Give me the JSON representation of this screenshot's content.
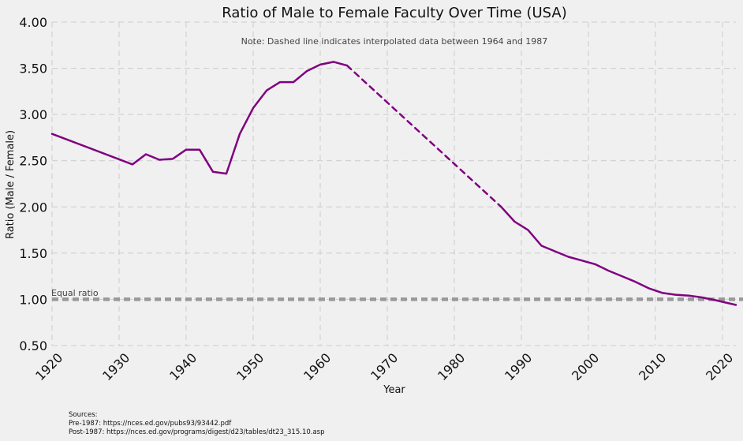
{
  "chart_data": {
    "type": "line",
    "title": "Ratio of Male to Female Faculty Over Time (USA)",
    "note": "Note: Dashed line indicates interpolated data between 1964 and 1987",
    "xlabel": "Year",
    "ylabel": "Ratio (Male / Female)",
    "xlim": [
      1920,
      2022
    ],
    "ylim": [
      0.5,
      4.0
    ],
    "xticks": [
      "1920",
      "1930",
      "1940",
      "1950",
      "1960",
      "1970",
      "1980",
      "1990",
      "2000",
      "2010",
      "2020"
    ],
    "yticks": [
      "0.50",
      "1.00",
      "1.50",
      "2.00",
      "2.50",
      "3.00",
      "3.50",
      "4.00"
    ],
    "grid": true,
    "color": "#800080",
    "reference_line": {
      "y": 1.0,
      "label": "Equal ratio",
      "color": "#999999"
    },
    "series": [
      {
        "style": "solid",
        "x": [
          1920,
          1932,
          1934,
          1936,
          1938,
          1940,
          1942,
          1944,
          1946,
          1948,
          1950,
          1952,
          1954,
          1956,
          1958,
          1960,
          1962,
          1964
        ],
        "y": [
          2.79,
          2.46,
          2.57,
          2.51,
          2.52,
          2.62,
          2.62,
          2.38,
          2.36,
          2.79,
          3.07,
          3.26,
          3.35,
          3.35,
          3.47,
          3.54,
          3.57,
          3.53
        ]
      },
      {
        "style": "dashed",
        "x": [
          1964,
          1987
        ],
        "y": [
          3.53,
          2.0
        ]
      },
      {
        "style": "solid",
        "x": [
          1987,
          1989,
          1991,
          1993,
          1995,
          1997,
          1999,
          2001,
          2003,
          2005,
          2007,
          2009,
          2011,
          2013,
          2015,
          2017,
          2019,
          2022
        ],
        "y": [
          2.0,
          1.84,
          1.75,
          1.58,
          1.52,
          1.46,
          1.42,
          1.38,
          1.31,
          1.25,
          1.19,
          1.12,
          1.07,
          1.05,
          1.04,
          1.02,
          0.99,
          0.94
        ]
      }
    ]
  },
  "sources": {
    "heading": "Sources:",
    "pre": "Pre-1987: https://nces.ed.gov/pubs93/93442.pdf",
    "post": "Post-1987: https://nces.ed.gov/programs/digest/d23/tables/dt23_315.10.asp"
  }
}
